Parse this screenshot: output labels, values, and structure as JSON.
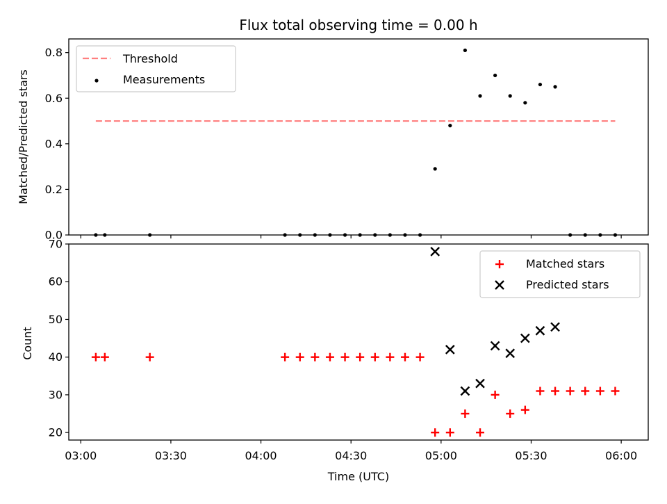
{
  "title": "Flux total observing time = 0.00 h",
  "x_axis": {
    "label": "Time (UTC)",
    "ticks": [
      "03:00",
      "03:30",
      "04:00",
      "04:30",
      "05:00",
      "05:30",
      "06:00"
    ]
  },
  "chart_data": [
    {
      "type": "scatter",
      "ylabel": "Matched/Predicted stars",
      "xlim": [
        "02:56",
        "06:09"
      ],
      "ylim": [
        0,
        0.86
      ],
      "yticks": [
        "0.0",
        "0.2",
        "0.4",
        "0.6",
        "0.8"
      ],
      "legend_placement": "upper-left",
      "threshold": {
        "name": "Threshold",
        "value": 0.5,
        "x": [
          "03:05",
          "05:58"
        ],
        "color": "#ff7f7f"
      },
      "series": [
        {
          "name": "Measurements",
          "marker": "dot",
          "color": "#000000",
          "points": [
            [
              "03:05",
              0
            ],
            [
              "03:08",
              0
            ],
            [
              "03:23",
              0
            ],
            [
              "04:08",
              0
            ],
            [
              "04:13",
              0
            ],
            [
              "04:18",
              0
            ],
            [
              "04:23",
              0
            ],
            [
              "04:28",
              0
            ],
            [
              "04:33",
              0
            ],
            [
              "04:38",
              0
            ],
            [
              "04:43",
              0
            ],
            [
              "04:48",
              0
            ],
            [
              "04:53",
              0
            ],
            [
              "04:58",
              0.29
            ],
            [
              "05:03",
              0.48
            ],
            [
              "05:08",
              0.81
            ],
            [
              "05:13",
              0.61
            ],
            [
              "05:18",
              0.7
            ],
            [
              "05:23",
              0.61
            ],
            [
              "05:28",
              0.58
            ],
            [
              "05:33",
              0.66
            ],
            [
              "05:38",
              0.65
            ],
            [
              "05:43",
              0
            ],
            [
              "05:48",
              0
            ],
            [
              "05:53",
              0
            ],
            [
              "05:58",
              0
            ]
          ]
        }
      ]
    },
    {
      "type": "scatter",
      "ylabel": "Count",
      "xlim": [
        "02:56",
        "06:09"
      ],
      "ylim": [
        18,
        70
      ],
      "yticks": [
        "20",
        "30",
        "40",
        "50",
        "60",
        "70"
      ],
      "legend_placement": "upper-right",
      "series": [
        {
          "name": "Matched stars",
          "marker": "plus",
          "color": "#ff0000",
          "points": [
            [
              "03:05",
              40
            ],
            [
              "03:08",
              40
            ],
            [
              "03:23",
              40
            ],
            [
              "04:08",
              40
            ],
            [
              "04:13",
              40
            ],
            [
              "04:18",
              40
            ],
            [
              "04:23",
              40
            ],
            [
              "04:28",
              40
            ],
            [
              "04:33",
              40
            ],
            [
              "04:38",
              40
            ],
            [
              "04:43",
              40
            ],
            [
              "04:48",
              40
            ],
            [
              "04:53",
              40
            ],
            [
              "04:58",
              20
            ],
            [
              "05:03",
              20
            ],
            [
              "05:08",
              25
            ],
            [
              "05:13",
              20
            ],
            [
              "05:18",
              30
            ],
            [
              "05:23",
              25
            ],
            [
              "05:28",
              26
            ],
            [
              "05:33",
              31
            ],
            [
              "05:38",
              31
            ],
            [
              "05:43",
              31
            ],
            [
              "05:48",
              31
            ],
            [
              "05:53",
              31
            ],
            [
              "05:58",
              31
            ]
          ]
        },
        {
          "name": "Predicted stars",
          "marker": "cross",
          "color": "#000000",
          "points": [
            [
              "04:58",
              68
            ],
            [
              "05:03",
              42
            ],
            [
              "05:08",
              31
            ],
            [
              "05:13",
              33
            ],
            [
              "05:18",
              43
            ],
            [
              "05:23",
              41
            ],
            [
              "05:28",
              45
            ],
            [
              "05:33",
              47
            ],
            [
              "05:38",
              48
            ]
          ]
        }
      ]
    }
  ]
}
